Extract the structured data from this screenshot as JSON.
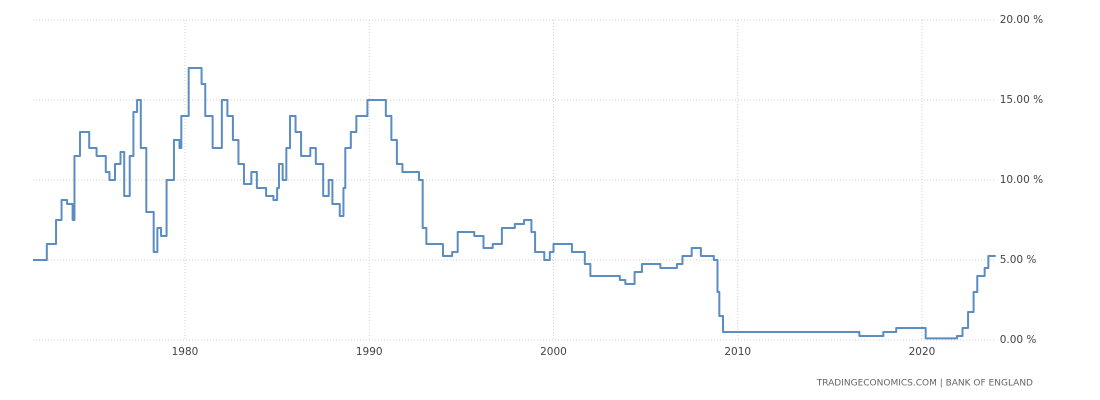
{
  "chart_data": {
    "type": "line",
    "step": true,
    "grid": true,
    "annotation": "TRADINGECONOMICS.COM  |  BANK OF ENGLAND",
    "xlim": [
      1971.75,
      2024.0
    ],
    "xticks": [
      1980,
      1990,
      2000,
      2010,
      2020
    ],
    "ylim": [
      0,
      20
    ],
    "yticks": [
      {
        "value": 0,
        "label": "0.00 %"
      },
      {
        "value": 5,
        "label": "5.00 %"
      },
      {
        "value": 10,
        "label": "10.00 %"
      },
      {
        "value": 15,
        "label": "15.00 %"
      },
      {
        "value": 20,
        "label": "20.00 %"
      }
    ],
    "x": [
      1971.75,
      1972.5,
      1973.0,
      1973.3,
      1973.6,
      1973.9,
      1974.0,
      1974.3,
      1974.8,
      1975.2,
      1975.7,
      1975.9,
      1976.2,
      1976.5,
      1976.7,
      1977.0,
      1977.2,
      1977.4,
      1977.6,
      1977.9,
      1978.3,
      1978.5,
      1978.7,
      1979.0,
      1979.4,
      1979.7,
      1979.8,
      1980.2,
      1980.9,
      1981.1,
      1981.5,
      1982.0,
      1982.3,
      1982.6,
      1982.9,
      1983.2,
      1983.6,
      1983.9,
      1984.4,
      1984.8,
      1985.0,
      1985.1,
      1985.3,
      1985.5,
      1985.7,
      1986.0,
      1986.3,
      1986.8,
      1987.1,
      1987.5,
      1987.8,
      1988.0,
      1988.4,
      1988.6,
      1988.7,
      1989.0,
      1989.3,
      1989.9,
      1990.9,
      1991.2,
      1991.5,
      1991.8,
      1992.7,
      1992.9,
      1993.1,
      1994.0,
      1994.5,
      1994.8,
      1995.7,
      1996.2,
      1996.7,
      1997.2,
      1997.9,
      1998.4,
      1998.8,
      1999.0,
      1999.5,
      1999.8,
      2000.0,
      2001.0,
      2001.7,
      2002.0,
      2003.6,
      2003.9,
      2004.4,
      2004.8,
      2005.8,
      2006.7,
      2007.0,
      2007.5,
      2008.0,
      2008.7,
      2008.9,
      2009.0,
      2009.2,
      2016.6,
      2017.9,
      2018.6,
      2020.2,
      2021.9,
      2022.2,
      2022.5,
      2022.8,
      2023.0,
      2023.4,
      2023.6,
      2024.0
    ],
    "series": [
      {
        "color": "#5b8cc2",
        "values": [
          5,
          6,
          7.5,
          8.75,
          8.5,
          7.5,
          11.5,
          13,
          12,
          11.5,
          10.5,
          10,
          11,
          11.75,
          9,
          11.5,
          14.25,
          15,
          12,
          8,
          5.5,
          7,
          6.5,
          10,
          12.5,
          12,
          14,
          17,
          16,
          14,
          12,
          15,
          14,
          12.5,
          11,
          9.75,
          10.5,
          9.5,
          9,
          8.75,
          9.5,
          11,
          10,
          12,
          14,
          13,
          11.5,
          12,
          11,
          9,
          10,
          8.5,
          7.75,
          9.5,
          12,
          13,
          14,
          15,
          14,
          12.5,
          11,
          10.5,
          10,
          7,
          6,
          5.25,
          5.5,
          6.75,
          6.5,
          5.75,
          6,
          7,
          7.25,
          7.5,
          6.75,
          5.5,
          5,
          5.5,
          6,
          5.5,
          4.75,
          4,
          3.75,
          3.5,
          4.25,
          4.75,
          4.5,
          4.75,
          5.25,
          5.75,
          5.25,
          5,
          3,
          1.5,
          0.5,
          0.25,
          0.5,
          0.75,
          0.1,
          0.25,
          0.75,
          1.75,
          3,
          4,
          4.5,
          5.25,
          5.25
        ]
      }
    ]
  }
}
